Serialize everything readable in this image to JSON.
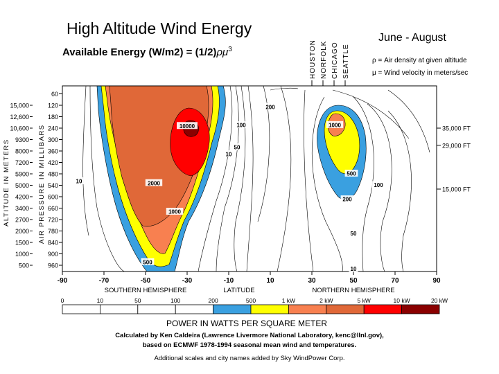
{
  "header": {
    "title": "High Altitude Wind Energy",
    "formula_main": "Available Energy (W/m2) = (1/2)",
    "formula_sym": "ρμ",
    "formula_sup": "3",
    "season": "June - August",
    "note_rho": "ρ = Air density at given altitude",
    "note_mu": "μ = Wind velocity in meters/sec"
  },
  "cities": [
    "HOUSTON",
    "NORFOLK",
    "CHICAGO",
    "SEATTLE"
  ],
  "axes": {
    "altitude_label": "ALTITUDE IN METERS",
    "pressure_label": "AIR PRESSURE IN MILLIBARS"
  },
  "footer": {
    "legend_title": "POWER IN WATTS PER SQUARE METER",
    "credit_line1": "Calculated by Ken Caldeira (Lawrence Livermore National Laboratory, kenc@llnl.gov),",
    "credit_line2": "based on ECMWF 1978-1994 seasonal mean wind and temperatures.",
    "credit_line3": "Additional scales and city names added by Sky WindPower Corp."
  },
  "chart_data": {
    "type": "contour",
    "x": {
      "label": "LATITUDE",
      "range": [
        -90,
        90
      ],
      "ticks": [
        -90,
        -70,
        -50,
        -30,
        -10,
        10,
        30,
        50,
        70,
        90
      ],
      "tick_labels": [
        "-90",
        "-70",
        "-50",
        "-30",
        "-10",
        "10",
        "30",
        "50",
        "70",
        "90"
      ],
      "regions": [
        "SOUTHERN HEMISPHERE",
        "NORTHERN HEMISPHERE"
      ]
    },
    "y_pressure": {
      "unit": "millibars",
      "range": [
        1000,
        50
      ],
      "ticks": [
        60,
        120,
        180,
        240,
        300,
        360,
        420,
        480,
        540,
        600,
        660,
        720,
        780,
        840,
        900,
        960
      ]
    },
    "y_altitude": {
      "unit": "meters",
      "ticks": [
        {
          "label": "15,000",
          "mb": 120
        },
        {
          "label": "12,600",
          "mb": 180
        },
        {
          "label": "10,600",
          "mb": 240
        },
        {
          "label": "9300",
          "mb": 300
        },
        {
          "label": "8000",
          "mb": 360
        },
        {
          "label": "7200",
          "mb": 420
        },
        {
          "label": "5900",
          "mb": 480
        },
        {
          "label": "5000",
          "mb": 540
        },
        {
          "label": "4200",
          "mb": 600
        },
        {
          "label": "3400",
          "mb": 660
        },
        {
          "label": "2700",
          "mb": 720
        },
        {
          "label": "2000",
          "mb": 780
        },
        {
          "label": "1500",
          "mb": 840
        },
        {
          "label": "1000",
          "mb": 900
        },
        {
          "label": "500",
          "mb": 960
        }
      ]
    },
    "y_feet": [
      {
        "label": "35,000 FT",
        "mb": 240
      },
      {
        "label": "29,000 FT",
        "mb": 330
      },
      {
        "label": "15,000 FT",
        "mb": 560
      }
    ],
    "contour_labels": [
      {
        "text": "200",
        "lat": 10,
        "mb": 130
      },
      {
        "text": "100",
        "lat": -4,
        "mb": 226
      },
      {
        "text": "50",
        "lat": -6,
        "mb": 342
      },
      {
        "text": "10",
        "lat": -10,
        "mb": 378
      },
      {
        "text": "10",
        "lat": -82,
        "mb": 520
      },
      {
        "text": "10000",
        "lat": -30,
        "mb": 230
      },
      {
        "text": "2000",
        "lat": -46,
        "mb": 530
      },
      {
        "text": "1000",
        "lat": -36,
        "mb": 680
      },
      {
        "text": "500",
        "lat": -49,
        "mb": 945
      },
      {
        "text": "1000",
        "lat": 41,
        "mb": 225
      },
      {
        "text": "500",
        "lat": 49,
        "mb": 480
      },
      {
        "text": "200",
        "lat": 47,
        "mb": 615
      },
      {
        "text": "100",
        "lat": 62,
        "mb": 540
      },
      {
        "text": "50",
        "lat": 50,
        "mb": 795
      },
      {
        "text": "10",
        "lat": 50,
        "mb": 980
      }
    ],
    "legend": {
      "scale": [
        "0",
        "10",
        "50",
        "100",
        "200",
        "500",
        "1 kW",
        "2 kW",
        "5 kW",
        "10 kW",
        "20 kW"
      ],
      "colors": [
        "#ffffff",
        "#ffffff",
        "#ffffff",
        "#ffffff",
        "#3aa0e0",
        "#ffff00",
        "#f88050",
        "#e06838",
        "#ff0000",
        "#8a0000"
      ]
    }
  }
}
